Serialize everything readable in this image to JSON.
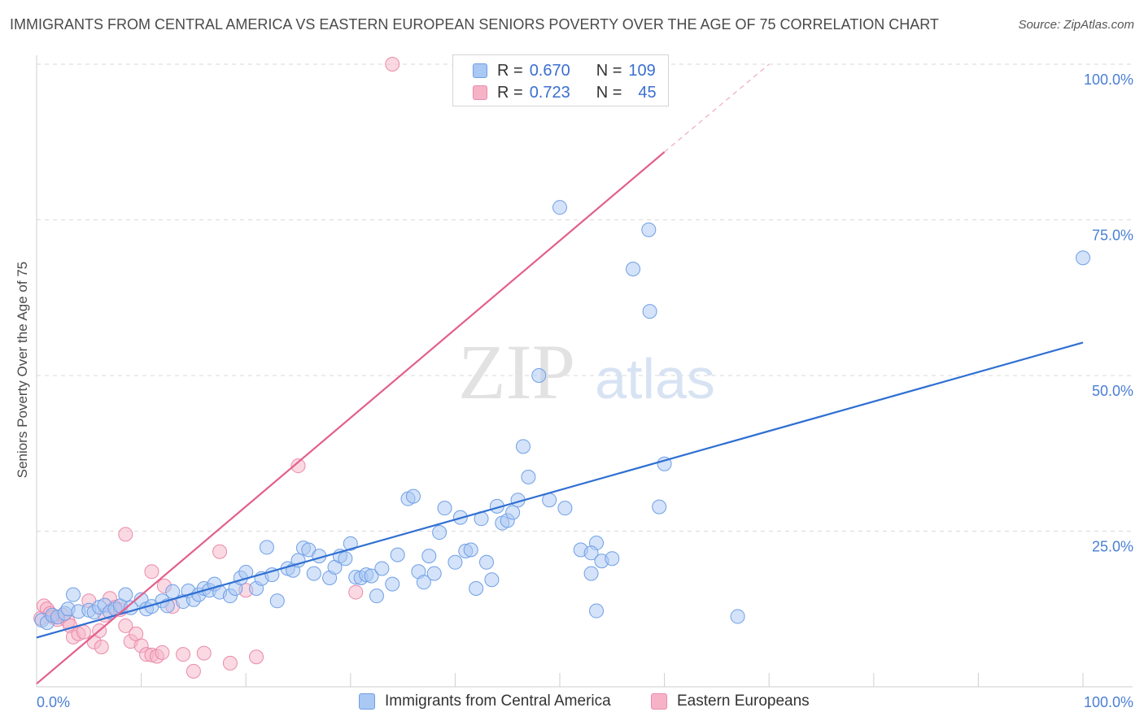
{
  "title": "IMMIGRANTS FROM CENTRAL AMERICA VS EASTERN EUROPEAN SENIORS POVERTY OVER THE AGE OF 75 CORRELATION CHART",
  "source": "Source: ZipAtlas.com",
  "watermark": {
    "zip": "ZIP",
    "atlas": "atlas"
  },
  "legend_top": [
    {
      "r_label": "R =",
      "r_value": "0.670",
      "n_label": "N =",
      "n_value": "109"
    },
    {
      "r_label": "R =",
      "r_value": "0.723",
      "n_label": "N =",
      "n_value": "45"
    }
  ],
  "colors": {
    "blue_fill": "#a9c8f3",
    "blue_stroke": "#6f9fe6",
    "blue_line": "#2f6fd2",
    "pink_fill": "#f6b3c8",
    "pink_stroke": "#eb8aaa",
    "pink_line": "#e25f8c",
    "axis_text": "#4a7fd4",
    "grid": "#d9d9d9"
  },
  "chart_data": {
    "type": "scatter",
    "title": "IMMIGRANTS FROM CENTRAL AMERICA VS EASTERN EUROPEAN SENIORS POVERTY OVER THE AGE OF 75 CORRELATION CHART",
    "xlabel": "",
    "ylabel": "Seniors Poverty Over the Age of 75",
    "xlim": [
      0,
      100
    ],
    "ylim": [
      0,
      100
    ],
    "x_tick_labels": [
      "0.0%",
      "100.0%"
    ],
    "y_tick_labels": [
      "25.0%",
      "50.0%",
      "75.0%",
      "100.0%"
    ],
    "y_ticks": [
      25,
      50,
      75,
      100
    ],
    "grid": true,
    "legend_position": "top-center and bottom",
    "series": [
      {
        "name": "Immigrants from Central America",
        "r": 0.67,
        "n": 109,
        "trend": [
          [
            0,
            7.9
          ],
          [
            100,
            55.3
          ]
        ],
        "points": [
          [
            0.5,
            10.7
          ],
          [
            1,
            10.3
          ],
          [
            1.5,
            11.5
          ],
          [
            2,
            11.2
          ],
          [
            2.7,
            11.8
          ],
          [
            3,
            12.5
          ],
          [
            3.5,
            14.8
          ],
          [
            4,
            12.1
          ],
          [
            5,
            12.3
          ],
          [
            5.5,
            12
          ],
          [
            6,
            12.8
          ],
          [
            6.5,
            13.1
          ],
          [
            7,
            12
          ],
          [
            7.5,
            12.5
          ],
          [
            8,
            13
          ],
          [
            8.5,
            14.8
          ],
          [
            9,
            12.7
          ],
          [
            10,
            14
          ],
          [
            10.5,
            12.5
          ],
          [
            11,
            12.9
          ],
          [
            12,
            13.8
          ],
          [
            12.5,
            13
          ],
          [
            13,
            15.3
          ],
          [
            14,
            13.7
          ],
          [
            14.5,
            15.4
          ],
          [
            15,
            14
          ],
          [
            15.5,
            14.8
          ],
          [
            16,
            15.8
          ],
          [
            16.5,
            15.5
          ],
          [
            17,
            16.5
          ],
          [
            17.5,
            15.2
          ],
          [
            18.5,
            14.6
          ],
          [
            19,
            15.8
          ],
          [
            19.5,
            17.5
          ],
          [
            20,
            18.4
          ],
          [
            21,
            15.8
          ],
          [
            21.5,
            17.4
          ],
          [
            22.5,
            18
          ],
          [
            22,
            22.4
          ],
          [
            23,
            13.8
          ],
          [
            24,
            19
          ],
          [
            24.5,
            18.7
          ],
          [
            25,
            20.3
          ],
          [
            25.5,
            22.3
          ],
          [
            26,
            22
          ],
          [
            26.5,
            18.2
          ],
          [
            27,
            21
          ],
          [
            28,
            17.5
          ],
          [
            28.5,
            19.2
          ],
          [
            29,
            21
          ],
          [
            29.5,
            20.6
          ],
          [
            30,
            23
          ],
          [
            30.5,
            17.6
          ],
          [
            31,
            17.5
          ],
          [
            31.5,
            18
          ],
          [
            32,
            17.8
          ],
          [
            32.5,
            14.6
          ],
          [
            33,
            19
          ],
          [
            34,
            16.5
          ],
          [
            34.5,
            21.2
          ],
          [
            35.5,
            30.2
          ],
          [
            36,
            30.6
          ],
          [
            36.5,
            18.5
          ],
          [
            37,
            16.8
          ],
          [
            37.5,
            21
          ],
          [
            38,
            18.2
          ],
          [
            38.5,
            24.8
          ],
          [
            39,
            28.7
          ],
          [
            40,
            20
          ],
          [
            40.5,
            27.2
          ],
          [
            41,
            21.8
          ],
          [
            41.5,
            22
          ],
          [
            42,
            15.8
          ],
          [
            42.5,
            27
          ],
          [
            43,
            20
          ],
          [
            43.5,
            17.2
          ],
          [
            44,
            29
          ],
          [
            44.5,
            26.3
          ],
          [
            45,
            26.7
          ],
          [
            45.5,
            28
          ],
          [
            46,
            30
          ],
          [
            46.5,
            38.6
          ],
          [
            47,
            33.7
          ],
          [
            48,
            50
          ],
          [
            49,
            30
          ],
          [
            50,
            77
          ],
          [
            50.5,
            28.7
          ],
          [
            52,
            22
          ],
          [
            53,
            18.2
          ],
          [
            53.5,
            23.1
          ],
          [
            53,
            21.5
          ],
          [
            54,
            20.2
          ],
          [
            53.5,
            12.2
          ],
          [
            55,
            20.6
          ],
          [
            57,
            67.1
          ],
          [
            59.5,
            28.9
          ],
          [
            58.5,
            73.4
          ],
          [
            58.6,
            60.3
          ],
          [
            60,
            35.8
          ],
          [
            67,
            11.3
          ],
          [
            100,
            68.9
          ]
        ]
      },
      {
        "name": "Eastern Europeans",
        "r": 0.723,
        "n": 45,
        "trend": [
          [
            0,
            0.5
          ],
          [
            60,
            85.9
          ]
        ],
        "trend_dashed": [
          [
            60,
            85.9
          ],
          [
            70,
            100
          ]
        ],
        "points": [
          [
            0.4,
            11
          ],
          [
            0.7,
            13
          ],
          [
            1,
            12.5
          ],
          [
            1.3,
            11.8
          ],
          [
            1.6,
            11.2
          ],
          [
            2,
            10.8
          ],
          [
            2.5,
            11.5
          ],
          [
            3,
            10.5
          ],
          [
            3.2,
            9.8
          ],
          [
            3.5,
            8
          ],
          [
            4,
            8.5
          ],
          [
            4.5,
            8.8
          ],
          [
            5,
            13.8
          ],
          [
            5.5,
            7.2
          ],
          [
            6,
            9
          ],
          [
            6.2,
            6.4
          ],
          [
            6.5,
            11.5
          ],
          [
            7,
            14.2
          ],
          [
            7.5,
            12.8
          ],
          [
            8,
            12.4
          ],
          [
            8.5,
            9.8
          ],
          [
            9,
            7.3
          ],
          [
            9.5,
            8.5
          ],
          [
            10,
            6.6
          ],
          [
            10.5,
            5.2
          ],
          [
            11,
            5.1
          ],
          [
            11.5,
            4.9
          ],
          [
            12,
            5.5
          ],
          [
            11,
            18.5
          ],
          [
            8.5,
            24.5
          ],
          [
            12.2,
            16.2
          ],
          [
            13,
            12.9
          ],
          [
            14,
            5.2
          ],
          [
            15,
            2.5
          ],
          [
            16,
            5.4
          ],
          [
            17.5,
            21.7
          ],
          [
            18.5,
            3.8
          ],
          [
            20,
            15.5
          ],
          [
            21,
            4.8
          ],
          [
            25,
            35.5
          ],
          [
            30.5,
            15.2
          ],
          [
            34,
            100
          ]
        ]
      }
    ]
  },
  "legend_bottom": [
    "Immigrants from Central America",
    "Eastern Europeans"
  ]
}
